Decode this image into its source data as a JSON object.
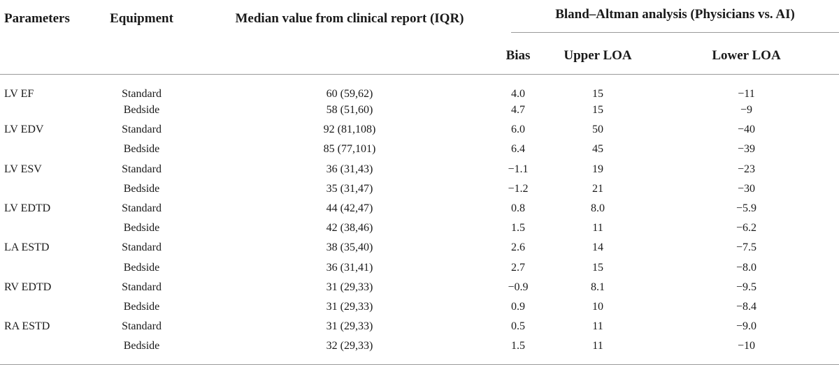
{
  "header": {
    "parameters": "Parameters",
    "equipment": "Equipment",
    "median": "Median value from clinical report (IQR)",
    "bland_altman": "Bland–Altman analysis (Physicians vs. AI)",
    "bias": "Bias",
    "upper_loa": "Upper LOA",
    "lower_loa": "Lower LOA"
  },
  "rows": [
    {
      "parameter": "LV EF",
      "equipment": "Standard",
      "median": "60 (59,62)",
      "bias": "4.0",
      "upper": "15",
      "lower": "−11"
    },
    {
      "parameter": "",
      "equipment": "Bedside",
      "median": "58 (51,60)",
      "bias": "4.7",
      "upper": "15",
      "lower": "−9"
    },
    {
      "parameter": "LV EDV",
      "equipment": "Standard",
      "median": "92 (81,108)",
      "bias": "6.0",
      "upper": "50",
      "lower": "−40"
    },
    {
      "parameter": "",
      "equipment": "Bedside",
      "median": "85 (77,101)",
      "bias": "6.4",
      "upper": "45",
      "lower": "−39"
    },
    {
      "parameter": "LV ESV",
      "equipment": "Standard",
      "median": "36 (31,43)",
      "bias": "−1.1",
      "upper": "19",
      "lower": "−23"
    },
    {
      "parameter": "",
      "equipment": "Bedside",
      "median": "35 (31,47)",
      "bias": "−1.2",
      "upper": "21",
      "lower": "−30"
    },
    {
      "parameter": "LV EDTD",
      "equipment": "Standard",
      "median": "44 (42,47)",
      "bias": "0.8",
      "upper": "8.0",
      "lower": "−5.9"
    },
    {
      "parameter": "",
      "equipment": "Bedside",
      "median": "42 (38,46)",
      "bias": "1.5",
      "upper": "11",
      "lower": "−6.2"
    },
    {
      "parameter": "LA ESTD",
      "equipment": "Standard",
      "median": "38 (35,40)",
      "bias": "2.6",
      "upper": "14",
      "lower": "−7.5"
    },
    {
      "parameter": "",
      "equipment": "Bedside",
      "median": "36 (31,41)",
      "bias": "2.7",
      "upper": "15",
      "lower": "−8.0"
    },
    {
      "parameter": "RV EDTD",
      "equipment": "Standard",
      "median": "31 (29,33)",
      "bias": "−0.9",
      "upper": "8.1",
      "lower": "−9.5"
    },
    {
      "parameter": "",
      "equipment": "Bedside",
      "median": "31 (29,33)",
      "bias": "0.9",
      "upper": "10",
      "lower": "−8.4"
    },
    {
      "parameter": "RA ESTD",
      "equipment": "Standard",
      "median": "31 (29,33)",
      "bias": "0.5",
      "upper": "11",
      "lower": "−9.0"
    },
    {
      "parameter": "",
      "equipment": "Bedside",
      "median": "32 (29,33)",
      "bias": "1.5",
      "upper": "11",
      "lower": "−10"
    }
  ]
}
